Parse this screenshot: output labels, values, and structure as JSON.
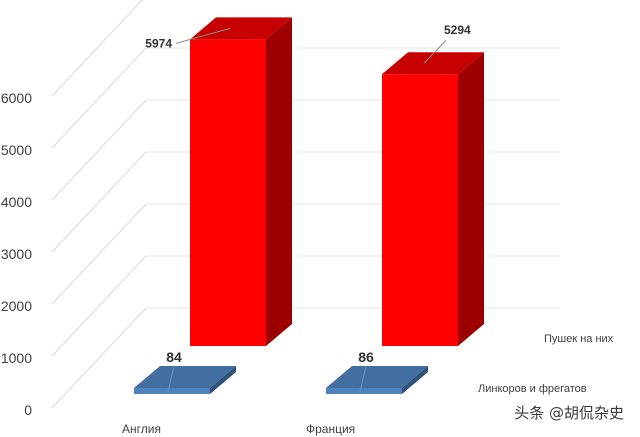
{
  "chart_data": {
    "type": "bar",
    "categories": [
      "Англия",
      "Франция"
    ],
    "series": [
      {
        "name": "Пушек на них",
        "values": [
          5974,
          5294
        ],
        "color": "#ff0000"
      },
      {
        "name": "Линкоров и фрегатов",
        "values": [
          84,
          86
        ],
        "color": "#4f81bd"
      }
    ],
    "ylim": [
      0,
      6000
    ],
    "yticks": [
      0,
      1000,
      2000,
      3000,
      4000,
      5000,
      6000
    ],
    "grid": true,
    "legend": "right",
    "title": "",
    "xlabel": "",
    "ylabel": ""
  },
  "watermark": "头条 @胡侃杂史"
}
